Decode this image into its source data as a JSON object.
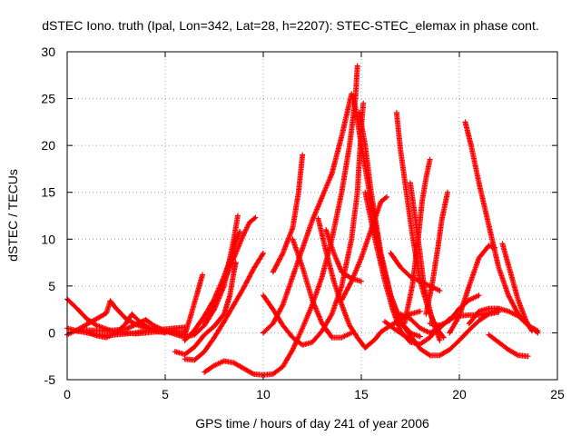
{
  "chart_data": {
    "type": "scatter",
    "title": "dSTEC Iono. truth (Ipal, Lon=342, Lat=28, h=2207): STEC-STEC_elemax in phase cont.",
    "xlabel": "GPS time / hours of day 241 of year 2006",
    "ylabel": "dSTEC  / TECUs",
    "xlim": [
      0,
      25
    ],
    "ylim": [
      -5,
      30
    ],
    "xticks": [
      0,
      5,
      10,
      15,
      20,
      25
    ],
    "yticks": [
      -5,
      0,
      5,
      10,
      15,
      20,
      25,
      30
    ],
    "x_tick_labels": [
      "0",
      "5",
      "10",
      "15",
      "20",
      "25"
    ],
    "y_tick_labels": [
      "-5",
      "0",
      "5",
      "10",
      "15",
      "20",
      "25",
      "30"
    ],
    "grid": true,
    "marker": "plus",
    "color": "#ff0000",
    "series": [
      {
        "points": [
          [
            0,
            3.6
          ],
          [
            0.5,
            2.6
          ],
          [
            1,
            1.5
          ],
          [
            1.5,
            0.8
          ],
          [
            2,
            0.4
          ],
          [
            2.5,
            0.1
          ],
          [
            3,
            0
          ],
          [
            3.5,
            -0.1
          ],
          [
            4,
            0
          ],
          [
            4.5,
            0.1
          ],
          [
            5,
            0.1
          ],
          [
            5.5,
            0.2
          ],
          [
            6,
            0.1
          ]
        ]
      },
      {
        "points": [
          [
            0,
            0.5
          ],
          [
            0.5,
            0.2
          ],
          [
            1,
            0
          ],
          [
            1.5,
            -0.2
          ],
          [
            2,
            -0.3
          ],
          [
            2.5,
            -0.2
          ],
          [
            3,
            -0.1
          ],
          [
            3.5,
            0
          ],
          [
            4,
            0.2
          ],
          [
            4.5,
            0.3
          ],
          [
            5,
            0.4
          ],
          [
            5.5,
            0.5
          ],
          [
            6,
            0.6
          ]
        ]
      },
      {
        "points": [
          [
            0,
            -0.2
          ],
          [
            0.5,
            0.3
          ],
          [
            1,
            0.9
          ],
          [
            1.5,
            1.5
          ],
          [
            2,
            2.1
          ],
          [
            2.2,
            3.4
          ],
          [
            2.5,
            2.6
          ],
          [
            3,
            1.5
          ],
          [
            3.5,
            0.9
          ],
          [
            4,
            0.5
          ],
          [
            4.5,
            0.2
          ],
          [
            5,
            0
          ]
        ]
      },
      {
        "points": [
          [
            1,
            0.1
          ],
          [
            1.5,
            -0.3
          ],
          [
            2,
            -0.5
          ],
          [
            2.5,
            0
          ],
          [
            3,
            1.0
          ],
          [
            3.3,
            2.0
          ],
          [
            3.7,
            1.2
          ],
          [
            4.2,
            0.5
          ],
          [
            4.8,
            0.2
          ],
          [
            5.5,
            0
          ],
          [
            6,
            -0.2
          ]
        ]
      },
      {
        "points": [
          [
            0.5,
            0.2
          ],
          [
            1,
            0.3
          ],
          [
            2,
            0.2
          ],
          [
            3,
            0.4
          ],
          [
            4,
            1.4
          ],
          [
            4.4,
            0.8
          ],
          [
            5,
            0.2
          ],
          [
            6,
            -0.5
          ],
          [
            6.5,
            -0.2
          ],
          [
            7,
            0.8
          ],
          [
            7.5,
            2.5
          ],
          [
            8,
            5
          ],
          [
            8.3,
            8
          ],
          [
            8.5,
            10
          ],
          [
            8.7,
            12.5
          ]
        ]
      },
      {
        "points": [
          [
            6,
            -0.8
          ],
          [
            6.5,
            0.3
          ],
          [
            7,
            1.8
          ],
          [
            7.5,
            3.6
          ],
          [
            8,
            6
          ],
          [
            8.4,
            8.3
          ],
          [
            8.8,
            10.8
          ]
        ]
      },
      {
        "points": [
          [
            6,
            -0.2
          ],
          [
            6.3,
            1.8
          ],
          [
            6.6,
            4
          ],
          [
            6.9,
            6.2
          ]
        ]
      },
      {
        "points": [
          [
            7,
            1
          ],
          [
            7.5,
            3
          ],
          [
            8,
            5.5
          ],
          [
            8.5,
            8
          ],
          [
            9,
            10.5
          ],
          [
            9.3,
            11.8
          ],
          [
            9.6,
            12.3
          ]
        ]
      },
      {
        "points": [
          [
            6,
            -2.8
          ],
          [
            6.5,
            -2.9
          ],
          [
            7,
            -2
          ],
          [
            7.5,
            -0.5
          ],
          [
            8,
            1.2
          ],
          [
            8.5,
            3
          ],
          [
            9,
            4.8
          ],
          [
            9.5,
            6.8
          ],
          [
            10,
            8.5
          ]
        ]
      },
      {
        "points": [
          [
            5.5,
            -2
          ],
          [
            6,
            -2.3
          ],
          [
            6.5,
            -1.5
          ],
          [
            7,
            -0.2
          ],
          [
            7.5,
            0.7
          ],
          [
            8,
            2
          ],
          [
            8.3,
            4
          ],
          [
            8.5,
            6.5
          ],
          [
            8.6,
            7.5
          ]
        ]
      },
      {
        "points": [
          [
            7,
            -4.2
          ],
          [
            7.5,
            -3.5
          ],
          [
            8,
            -3
          ],
          [
            8.5,
            -3.2
          ],
          [
            9,
            -3.8
          ],
          [
            9.5,
            -4.4
          ],
          [
            10,
            -4.5
          ],
          [
            10.5,
            -4.4
          ],
          [
            11,
            -3.6
          ],
          [
            11.5,
            -1.8
          ],
          [
            12,
            0.5
          ],
          [
            12.5,
            3
          ],
          [
            13,
            6
          ],
          [
            13.5,
            10
          ],
          [
            14,
            15
          ],
          [
            14.4,
            20
          ],
          [
            14.7,
            25
          ],
          [
            14.8,
            28.5
          ]
        ]
      },
      {
        "points": [
          [
            10,
            4
          ],
          [
            10.5,
            2.5
          ],
          [
            11,
            0.8
          ],
          [
            11.5,
            -0.5
          ],
          [
            12,
            -1.3
          ],
          [
            12.5,
            -1
          ],
          [
            13,
            0.2
          ],
          [
            13.5,
            2
          ],
          [
            14,
            5
          ],
          [
            14.5,
            10
          ],
          [
            14.8,
            15
          ],
          [
            15,
            22
          ],
          [
            15.1,
            24.5
          ]
        ]
      },
      {
        "points": [
          [
            10.5,
            6.5
          ],
          [
            11,
            8.5
          ],
          [
            11.5,
            11.2
          ],
          [
            11.8,
            15
          ],
          [
            12,
            19
          ]
        ]
      },
      {
        "points": [
          [
            11.5,
            10
          ],
          [
            12,
            7
          ],
          [
            12.5,
            3.5
          ],
          [
            13,
            1
          ],
          [
            13.5,
            -0.5
          ],
          [
            14,
            -0.5
          ],
          [
            14.5,
            0
          ]
        ]
      },
      {
        "points": [
          [
            10,
            0
          ],
          [
            10.5,
            1
          ],
          [
            11,
            3
          ],
          [
            11.5,
            6
          ],
          [
            12,
            9
          ],
          [
            12.5,
            12
          ],
          [
            13,
            14.5
          ],
          [
            13.5,
            17
          ],
          [
            14,
            21
          ],
          [
            14.5,
            25.5
          ],
          [
            14.7,
            24
          ],
          [
            15,
            20
          ],
          [
            15.5,
            14
          ],
          [
            16,
            8
          ],
          [
            16.5,
            4
          ],
          [
            17,
            1.2
          ],
          [
            17.5,
            0
          ],
          [
            18,
            -0.4
          ]
        ]
      },
      {
        "points": [
          [
            14.9,
            23.5
          ],
          [
            15.2,
            20
          ],
          [
            15.5,
            15
          ],
          [
            16,
            8.5
          ],
          [
            16.5,
            4
          ],
          [
            17,
            1.2
          ],
          [
            17.5,
            -0.3
          ],
          [
            18,
            -1.7
          ],
          [
            18.5,
            -2.4
          ],
          [
            19,
            -2.4
          ],
          [
            19.5,
            -1.8
          ],
          [
            20,
            -0.8
          ],
          [
            20.5,
            0.3
          ],
          [
            21,
            1.3
          ],
          [
            21.5,
            2
          ],
          [
            22,
            2.2
          ]
        ]
      },
      {
        "points": [
          [
            12.8,
            12.2
          ],
          [
            13.2,
            8.7
          ],
          [
            13.6,
            5.5
          ],
          [
            14,
            3
          ],
          [
            14.4,
            0.8
          ],
          [
            14.8,
            -0.5
          ],
          [
            15.2,
            -1.6
          ],
          [
            15.7,
            -0.7
          ],
          [
            16,
            0.1
          ],
          [
            16.5,
            0.8
          ],
          [
            17,
            1.4
          ],
          [
            17.5,
            2
          ],
          [
            18,
            2.3
          ]
        ]
      },
      {
        "points": [
          [
            13.2,
            11
          ],
          [
            13.6,
            8.5
          ],
          [
            14,
            6.5
          ],
          [
            14.5,
            5.8
          ],
          [
            15,
            5.5
          ]
        ]
      },
      {
        "points": [
          [
            14,
            3.5
          ],
          [
            14.5,
            5.5
          ],
          [
            15,
            8
          ],
          [
            15.5,
            11
          ],
          [
            16,
            14
          ],
          [
            16.3,
            14.5
          ]
        ]
      },
      {
        "points": [
          [
            15.2,
            15
          ],
          [
            15.7,
            10
          ],
          [
            16.2,
            5.5
          ],
          [
            16.6,
            2.5
          ],
          [
            17,
            0.2
          ],
          [
            17.5,
            -1
          ],
          [
            18,
            -1.2
          ],
          [
            18.5,
            -0.5
          ],
          [
            19,
            0.8
          ]
        ]
      },
      {
        "points": [
          [
            16.8,
            23.5
          ],
          [
            17,
            19.5
          ],
          [
            17.3,
            15
          ],
          [
            17.6,
            10.5
          ],
          [
            18,
            5.5
          ],
          [
            18.4,
            2.7
          ],
          [
            18.8,
            0.6
          ],
          [
            19.2,
            -0.5
          ]
        ]
      },
      {
        "points": [
          [
            16.5,
            8.5
          ],
          [
            17,
            7
          ],
          [
            17.5,
            6
          ],
          [
            18,
            5.5
          ],
          [
            18.5,
            5
          ],
          [
            19,
            4.5
          ]
        ]
      },
      {
        "points": [
          [
            16.2,
            1.2
          ],
          [
            16.7,
            0.4
          ],
          [
            17.2,
            -0.3
          ],
          [
            17.5,
            -0.7
          ]
        ]
      },
      {
        "points": [
          [
            17.2,
            1
          ],
          [
            17.6,
            5
          ],
          [
            17.9,
            10
          ],
          [
            18.1,
            14
          ],
          [
            18.3,
            16.5
          ],
          [
            18.5,
            18.5
          ]
        ]
      },
      {
        "points": [
          [
            18.3,
            2
          ],
          [
            18.6,
            5
          ],
          [
            18.9,
            9
          ],
          [
            19.1,
            12
          ],
          [
            19.4,
            15
          ]
        ]
      },
      {
        "points": [
          [
            17.5,
            16
          ],
          [
            17.9,
            10
          ],
          [
            18.2,
            5
          ],
          [
            18.6,
            1.5
          ],
          [
            19,
            -0.8
          ]
        ]
      },
      {
        "points": [
          [
            17,
            2
          ],
          [
            17.5,
            1.5
          ],
          [
            18,
            0.5
          ],
          [
            18.5,
            0
          ],
          [
            19,
            0.5
          ],
          [
            19.5,
            1.5
          ],
          [
            20,
            1.8
          ],
          [
            20.5,
            1.9
          ],
          [
            21,
            1.9
          ],
          [
            21.5,
            2.1
          ],
          [
            22,
            2.5
          ]
        ]
      },
      {
        "points": [
          [
            18.5,
            1
          ],
          [
            19,
            0.8
          ],
          [
            19.5,
            1.3
          ],
          [
            20,
            2.6
          ],
          [
            20.5,
            3.5
          ],
          [
            21,
            4
          ]
        ]
      },
      {
        "points": [
          [
            20.5,
            1
          ],
          [
            21,
            2.3
          ],
          [
            21.5,
            2.6
          ],
          [
            22,
            2.6
          ],
          [
            22.5,
            2.3
          ],
          [
            23,
            1.8
          ],
          [
            23.5,
            0.8
          ],
          [
            24,
            0
          ]
        ]
      },
      {
        "points": [
          [
            19.5,
            0
          ],
          [
            20,
            1.8
          ],
          [
            20.5,
            5
          ],
          [
            21,
            8
          ],
          [
            21.5,
            9.3
          ],
          [
            21.8,
            9.1
          ]
        ]
      },
      {
        "points": [
          [
            20.3,
            22.5
          ],
          [
            20.6,
            20
          ],
          [
            21,
            16
          ],
          [
            21.5,
            11.5
          ],
          [
            22,
            7
          ],
          [
            22.5,
            4
          ],
          [
            23,
            2
          ],
          [
            23.5,
            0.8
          ],
          [
            24,
            0.2
          ]
        ]
      },
      {
        "points": [
          [
            21.5,
            -0.2
          ],
          [
            22,
            -1
          ],
          [
            22.5,
            -1.8
          ],
          [
            23,
            -2.4
          ],
          [
            23.5,
            -2.5
          ]
        ]
      },
      {
        "points": [
          [
            22.2,
            9.5
          ],
          [
            22.6,
            6.5
          ],
          [
            23,
            3.5
          ],
          [
            23.4,
            1.3
          ],
          [
            23.7,
            0.2
          ]
        ]
      }
    ]
  }
}
